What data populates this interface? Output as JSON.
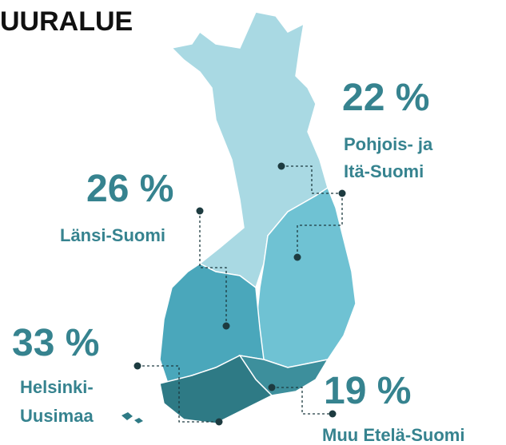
{
  "title": "UURALUE",
  "regions": [
    {
      "value": "22 %",
      "name": [
        "Pohjois- ja",
        "Itä-Suomi"
      ]
    },
    {
      "value": "26 %",
      "name": [
        "Länsi-Suomi"
      ]
    },
    {
      "value": "33 %",
      "name": [
        "Helsinki-",
        "Uusimaa"
      ]
    },
    {
      "value": "19 %",
      "name": [
        "Muu Etelä-Suomi"
      ]
    }
  ]
}
